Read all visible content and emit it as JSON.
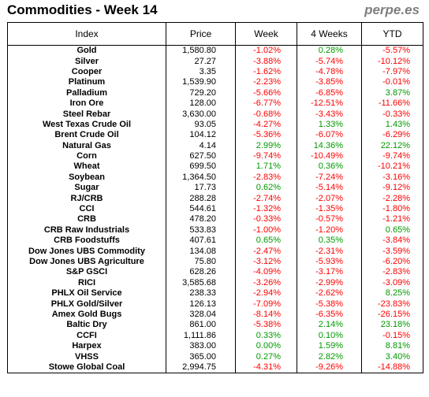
{
  "header": {
    "title": "Commodities - Week 14",
    "brand": "perpe.es"
  },
  "table": {
    "columns": [
      "Index",
      "Price",
      "Week",
      "4 Weeks",
      "YTD"
    ],
    "rows": [
      {
        "name": "Gold",
        "price": "1,580.80",
        "week": "-1.02%",
        "w4": "0.28%",
        "ytd": "-5.57%"
      },
      {
        "name": "Silver",
        "price": "27.27",
        "week": "-3.88%",
        "w4": "-5.74%",
        "ytd": "-10.12%"
      },
      {
        "name": "Cooper",
        "price": "3.35",
        "week": "-1.62%",
        "w4": "-4.78%",
        "ytd": "-7.97%"
      },
      {
        "name": "Platinum",
        "price": "1,539.90",
        "week": "-2.23%",
        "w4": "-3.85%",
        "ytd": "-0.01%"
      },
      {
        "name": "Palladium",
        "price": "729.20",
        "week": "-5.66%",
        "w4": "-6.85%",
        "ytd": "3.87%"
      },
      {
        "name": "Iron Ore",
        "price": "128.00",
        "week": "-6.77%",
        "w4": "-12.51%",
        "ytd": "-11.66%"
      },
      {
        "name": "Steel Rebar",
        "price": "3,630.00",
        "week": "-0.68%",
        "w4": "-3.43%",
        "ytd": "-0.33%"
      },
      {
        "name": "West Texas Crude Oil",
        "price": "93.05",
        "week": "-4.27%",
        "w4": "1.33%",
        "ytd": "1.43%"
      },
      {
        "name": "Brent Crude Oil",
        "price": "104.12",
        "week": "-5.36%",
        "w4": "-6.07%",
        "ytd": "-6.29%"
      },
      {
        "name": "Natural Gas",
        "price": "4.14",
        "week": "2.99%",
        "w4": "14.36%",
        "ytd": "22.12%"
      },
      {
        "name": "Corn",
        "price": "627.50",
        "week": "-9.74%",
        "w4": "-10.49%",
        "ytd": "-9.74%"
      },
      {
        "name": "Wheat",
        "price": "699.50",
        "week": "1.71%",
        "w4": "0.36%",
        "ytd": "-10.21%"
      },
      {
        "name": "Soybean",
        "price": "1,364.50",
        "week": "-2.83%",
        "w4": "-7.24%",
        "ytd": "-3.16%"
      },
      {
        "name": "Sugar",
        "price": "17.73",
        "week": "0.62%",
        "w4": "-5.14%",
        "ytd": "-9.12%"
      },
      {
        "name": "RJ/CRB",
        "price": "288.28",
        "week": "-2.74%",
        "w4": "-2.07%",
        "ytd": "-2.28%"
      },
      {
        "name": "CCI",
        "price": "544.61",
        "week": "-1.32%",
        "w4": "-1.35%",
        "ytd": "-1.80%"
      },
      {
        "name": "CRB",
        "price": "478.20",
        "week": "-0.33%",
        "w4": "-0.57%",
        "ytd": "-1.21%"
      },
      {
        "name": "CRB Raw Industrials",
        "price": "533.83",
        "week": "-1.00%",
        "w4": "-1.20%",
        "ytd": "0.65%"
      },
      {
        "name": "CRB Foodstuffs",
        "price": "407.61",
        "week": "0.65%",
        "w4": "0.35%",
        "ytd": "-3.84%"
      },
      {
        "name": "Dow Jones UBS Commodity",
        "price": "134.08",
        "week": "-2.47%",
        "w4": "-2.31%",
        "ytd": "-3.59%"
      },
      {
        "name": "Dow Jones UBS Agriculture",
        "price": "75.80",
        "week": "-3.12%",
        "w4": "-5.93%",
        "ytd": "-6.20%"
      },
      {
        "name": "S&P GSCI",
        "price": "628.26",
        "week": "-4.09%",
        "w4": "-3.17%",
        "ytd": "-2.83%"
      },
      {
        "name": "RICI",
        "price": "3,585.68",
        "week": "-3.26%",
        "w4": "-2.99%",
        "ytd": "-3.09%"
      },
      {
        "name": "PHLX Oil Service",
        "price": "238.33",
        "week": "-2.94%",
        "w4": "-2.62%",
        "ytd": "8.25%"
      },
      {
        "name": "PHLX Gold/Silver",
        "price": "126.13",
        "week": "-7.09%",
        "w4": "-5.38%",
        "ytd": "-23.83%"
      },
      {
        "name": "Amex Gold Bugs",
        "price": "328.04",
        "week": "-8.14%",
        "w4": "-6.35%",
        "ytd": "-26.15%"
      },
      {
        "name": "Baltic Dry",
        "price": "861.00",
        "week": "-5.38%",
        "w4": "2.14%",
        "ytd": "23.18%"
      },
      {
        "name": "CCFI",
        "price": "1,111.86",
        "week": "0.33%",
        "w4": "0.10%",
        "ytd": "-0.15%"
      },
      {
        "name": "Harpex",
        "price": "383.00",
        "week": "0.00%",
        "w4": "1.59%",
        "ytd": "8.81%"
      },
      {
        "name": "VHSS",
        "price": "365.00",
        "week": "0.27%",
        "w4": "2.82%",
        "ytd": "3.40%"
      },
      {
        "name": "Stowe Global Coal",
        "price": "2,994.75",
        "week": "-4.31%",
        "w4": "-9.26%",
        "ytd": "-14.88%"
      }
    ]
  },
  "colors": {
    "positive": "#009900",
    "negative": "#ff0000",
    "brand": "#7f7f7f"
  }
}
